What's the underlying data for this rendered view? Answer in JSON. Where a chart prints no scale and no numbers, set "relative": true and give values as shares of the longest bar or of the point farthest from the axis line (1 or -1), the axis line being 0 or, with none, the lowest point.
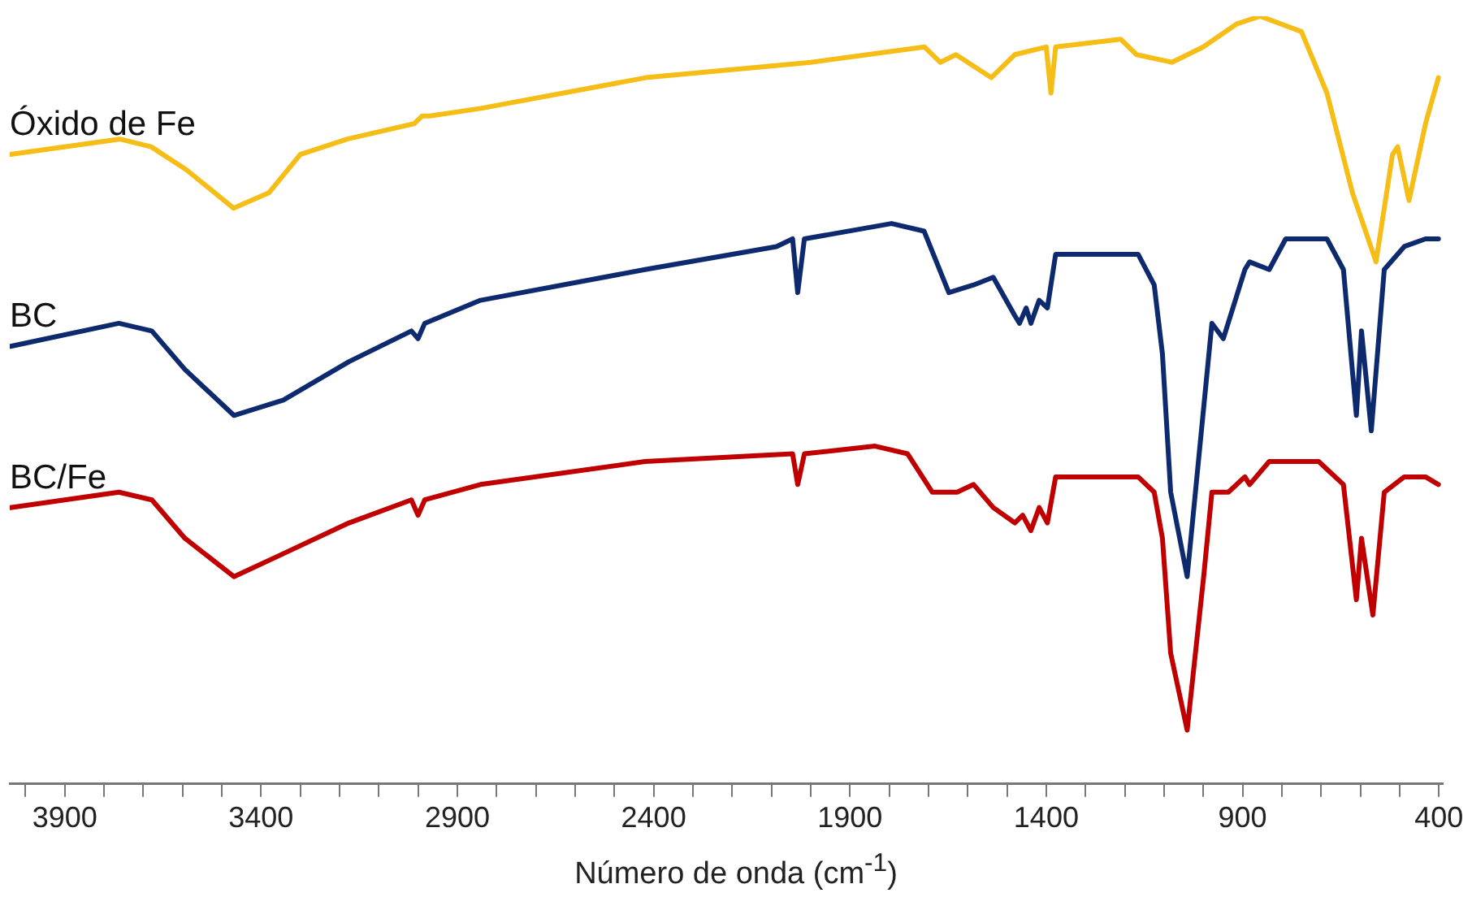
{
  "chart_data": {
    "type": "line",
    "relative": true,
    "xlabel": "Número de onda (cm$^{-1}$)",
    "xlim": [
      4040,
      390
    ],
    "xticks": [
      {
        "value": 4000,
        "label": null
      },
      3900,
      {
        "value": 3800,
        "label": null
      },
      {
        "value": 3700,
        "label": null
      },
      {
        "value": 3600,
        "label": null
      },
      {
        "value": 3500,
        "label": null
      },
      3400,
      {
        "value": 3300,
        "label": null
      },
      {
        "value": 3200,
        "label": null
      },
      {
        "value": 3100,
        "label": null
      },
      {
        "value": 3000,
        "label": null
      },
      2900,
      {
        "value": 2800,
        "label": null
      },
      {
        "value": 2700,
        "label": null
      },
      {
        "value": 2600,
        "label": null
      },
      {
        "value": 2500,
        "label": null
      },
      2400,
      {
        "value": 2300,
        "label": null
      },
      {
        "value": 2200,
        "label": null
      },
      {
        "value": 2100,
        "label": null
      },
      {
        "value": 2000,
        "label": null
      },
      1900,
      {
        "value": 1800,
        "label": null
      },
      {
        "value": 1700,
        "label": null
      },
      {
        "value": 1600,
        "label": null
      },
      {
        "value": 1500,
        "label": null
      },
      1400,
      {
        "value": 1300,
        "label": null
      },
      {
        "value": 1200,
        "label": null
      },
      {
        "value": 1100,
        "label": null
      },
      {
        "value": 1000,
        "label": null
      },
      900,
      {
        "value": 800,
        "label": null
      },
      {
        "value": 700,
        "label": null
      },
      {
        "value": 600,
        "label": null
      },
      {
        "value": 500,
        "label": null
      },
      400
    ],
    "grid": false,
    "marker": "none",
    "line_style": "solid",
    "series": [
      {
        "name": "Óxido de Fe",
        "color": "#f5bd16",
        "x": [
          4038,
          3760,
          3680,
          3590,
          3470,
          3380,
          3300,
          3180,
          3010,
          2990,
          2970,
          2840,
          2420,
          2000,
          1710,
          1670,
          1630,
          1540,
          1480,
          1400,
          1388,
          1376,
          1210,
          1170,
          1080,
          1000,
          915,
          855,
          750,
          685,
          620,
          560,
          518,
          505,
          476,
          434,
          401
        ],
        "values": [
          0.82,
          0.84,
          0.83,
          0.8,
          0.75,
          0.77,
          0.82,
          0.84,
          0.86,
          0.87,
          0.87,
          0.88,
          0.92,
          0.94,
          0.96,
          0.94,
          0.95,
          0.92,
          0.95,
          0.96,
          0.9,
          0.96,
          0.97,
          0.95,
          0.94,
          0.96,
          0.99,
          1.0,
          0.98,
          0.9,
          0.77,
          0.68,
          0.82,
          0.83,
          0.76,
          0.86,
          0.92
        ]
      },
      {
        "name": "BC",
        "color": "#0e2a6e",
        "x": [
          4038,
          3762,
          3678,
          3594,
          3469,
          3343,
          3176,
          3017,
          3000,
          2983,
          2841,
          2422,
          2087,
          2046,
          2033,
          2016,
          1794,
          1711,
          1648,
          1585,
          1535,
          1480,
          1468,
          1451,
          1439,
          1418,
          1397,
          1376,
          1166,
          1125,
          1104,
          1083,
          1041,
          999,
          978,
          949,
          894,
          882,
          832,
          790,
          748,
          685,
          643,
          610,
          597,
          572,
          539,
          488,
          434,
          401
        ],
        "values": [
          0.57,
          0.6,
          0.59,
          0.54,
          0.48,
          0.5,
          0.55,
          0.59,
          0.58,
          0.6,
          0.63,
          0.67,
          0.7,
          0.71,
          0.64,
          0.71,
          0.73,
          0.72,
          0.64,
          0.65,
          0.66,
          0.61,
          0.6,
          0.62,
          0.6,
          0.63,
          0.62,
          0.69,
          0.69,
          0.65,
          0.56,
          0.38,
          0.27,
          0.49,
          0.6,
          0.58,
          0.67,
          0.68,
          0.67,
          0.71,
          0.71,
          0.71,
          0.67,
          0.48,
          0.59,
          0.46,
          0.67,
          0.7,
          0.71,
          0.71
        ]
      },
      {
        "name": "BC/Fe",
        "color": "#c00000",
        "x": [
          4038,
          3762,
          3678,
          3594,
          3469,
          3343,
          3176,
          3017,
          3000,
          2983,
          2841,
          2422,
          2046,
          2033,
          2016,
          1836,
          1753,
          1690,
          1627,
          1585,
          1535,
          1480,
          1460,
          1439,
          1418,
          1397,
          1376,
          1166,
          1125,
          1104,
          1083,
          1041,
          999,
          978,
          936,
          894,
          882,
          832,
          706,
          643,
          610,
          597,
          568,
          539,
          488,
          434,
          401
        ],
        "values": [
          0.36,
          0.38,
          0.37,
          0.32,
          0.27,
          0.3,
          0.34,
          0.37,
          0.35,
          0.37,
          0.39,
          0.42,
          0.43,
          0.39,
          0.43,
          0.44,
          0.43,
          0.38,
          0.38,
          0.39,
          0.36,
          0.34,
          0.35,
          0.33,
          0.36,
          0.34,
          0.4,
          0.4,
          0.38,
          0.32,
          0.17,
          0.07,
          0.27,
          0.38,
          0.38,
          0.4,
          0.39,
          0.42,
          0.42,
          0.39,
          0.24,
          0.32,
          0.22,
          0.38,
          0.4,
          0.4,
          0.39
        ]
      }
    ]
  }
}
